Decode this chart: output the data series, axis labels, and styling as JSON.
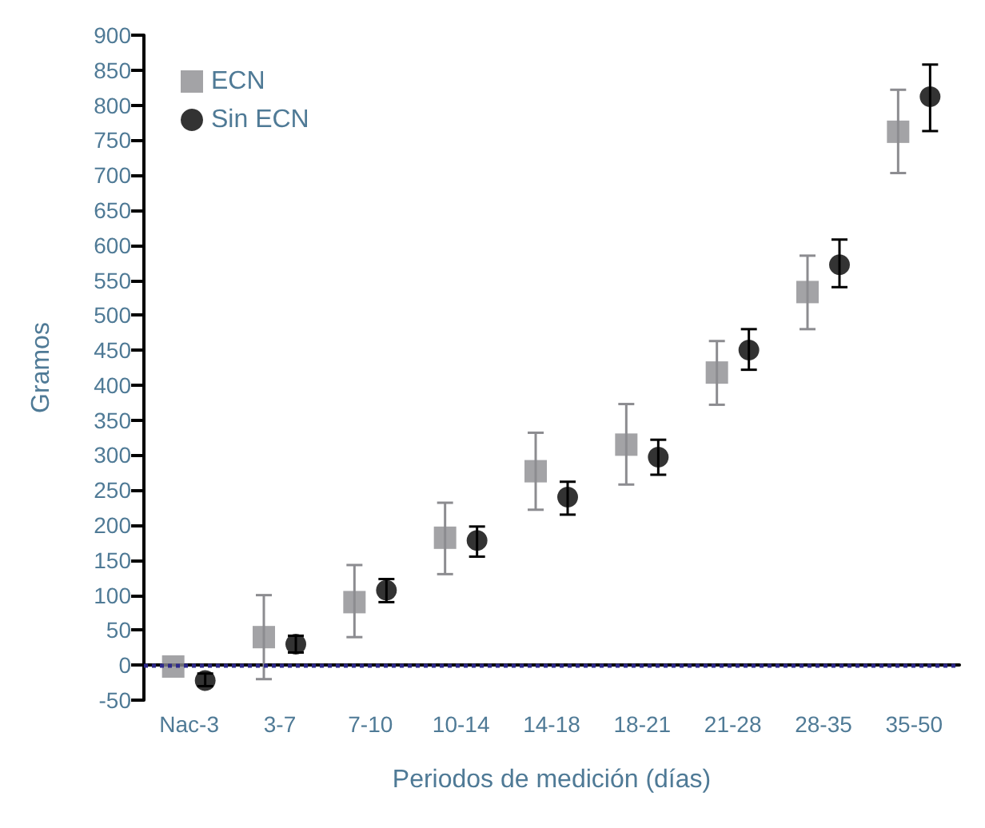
{
  "chart_data": {
    "type": "scatter",
    "xlabel": "Periodos de medición (días)",
    "ylabel": "Gramos",
    "categories": [
      "Nac-3",
      "3-7",
      "7-10",
      "10-14",
      "14-18",
      "18-21",
      "21-28",
      "28-35",
      "35-50"
    ],
    "series": [
      {
        "name": "ECN",
        "color": "#8c8c90",
        "marker": "square",
        "values": [
          -2,
          40,
          90,
          182,
          277,
          315,
          418,
          533,
          762
        ],
        "errors": [
          null,
          [
            -20,
            100
          ],
          [
            40,
            143
          ],
          [
            130,
            232
          ],
          [
            222,
            332
          ],
          [
            258,
            373
          ],
          [
            372,
            463
          ],
          [
            480,
            585
          ],
          [
            703,
            822
          ]
        ]
      },
      {
        "name": "Sin ECN",
        "color": "#000000",
        "marker": "circle",
        "values": [
          -22,
          30,
          107,
          178,
          240,
          297,
          450,
          572,
          812
        ],
        "errors": [
          [
            -30,
            -12
          ],
          [
            18,
            42
          ],
          [
            90,
            123
          ],
          [
            155,
            198
          ],
          [
            215,
            262
          ],
          [
            272,
            322
          ],
          [
            422,
            480
          ],
          [
            540,
            608
          ],
          [
            763,
            858
          ]
        ]
      }
    ],
    "ylim": [
      -50,
      900
    ],
    "yticks": [
      -50,
      0,
      50,
      100,
      150,
      200,
      250,
      300,
      350,
      400,
      450,
      500,
      550,
      600,
      650,
      700,
      750,
      800,
      850,
      900
    ],
    "ref_lines": [
      {
        "axis": "y",
        "value": 0,
        "color": "#2e2a8c",
        "line_style": "dotted"
      }
    ],
    "grid": false,
    "legend": "top left"
  }
}
